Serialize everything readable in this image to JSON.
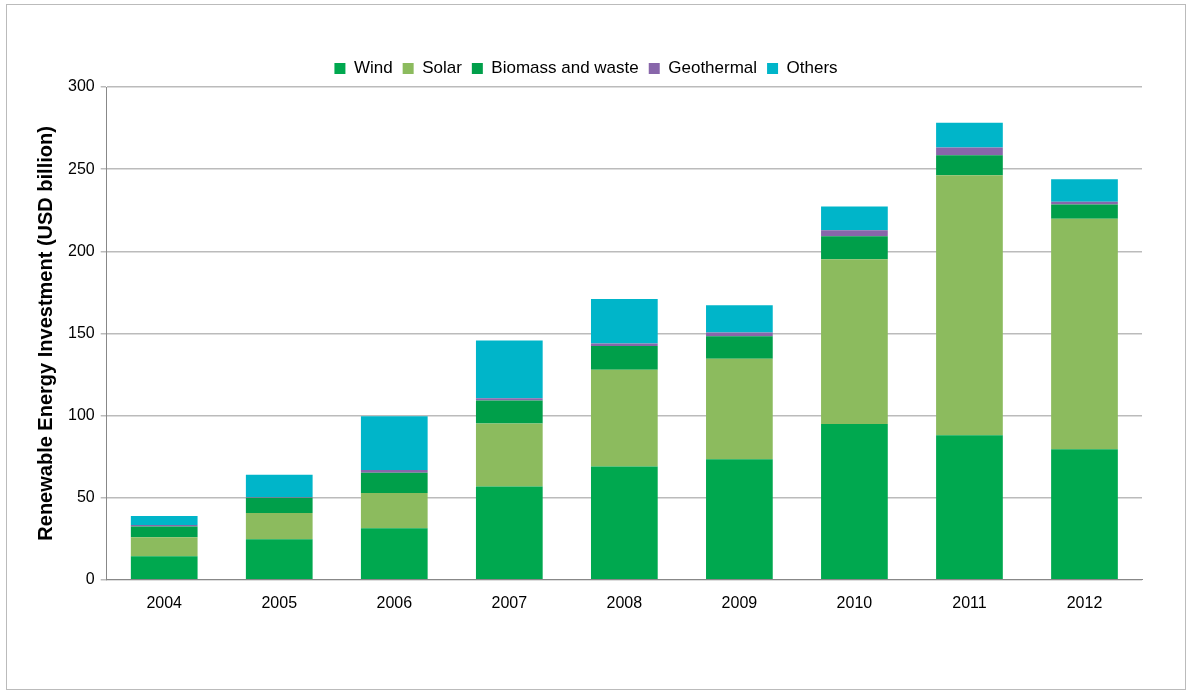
{
  "chart_data": {
    "type": "bar",
    "stacked": true,
    "ylabel": "Renewable Energy Investment (USD billion)",
    "categories": [
      "2004",
      "2005",
      "2006",
      "2007",
      "2008",
      "2009",
      "2010",
      "2011",
      "2012"
    ],
    "series": [
      {
        "name": "Wind",
        "color": "#00a84f",
        "values": [
          14.3,
          24.7,
          31.4,
          56.8,
          68.9,
          73.4,
          94.8,
          88.0,
          79.4
        ]
      },
      {
        "name": "Solar",
        "color": "#8cbb5e",
        "values": [
          11.6,
          15.9,
          21.5,
          38.4,
          59.0,
          61.2,
          100.4,
          158.3,
          140.4
        ]
      },
      {
        "name": "Biomass and waste",
        "color": "#009f4a",
        "values": [
          6.5,
          9.4,
          12.2,
          13.9,
          14.5,
          13.6,
          13.9,
          12.1,
          8.6
        ]
      },
      {
        "name": "Geothermal",
        "color": "#8866aa",
        "values": [
          0.9,
          0.4,
          1.8,
          1.4,
          1.5,
          2.4,
          3.7,
          4.7,
          1.8
        ]
      },
      {
        "name": "Others",
        "color": "#00b5c9",
        "values": [
          5.5,
          13.5,
          32.7,
          35.2,
          27.0,
          16.6,
          14.4,
          15.2,
          13.6
        ]
      }
    ],
    "ylim": [
      0,
      300
    ],
    "yticks": [
      0,
      50,
      100,
      150,
      200,
      250,
      300
    ],
    "grid": "y",
    "legend": "top"
  }
}
